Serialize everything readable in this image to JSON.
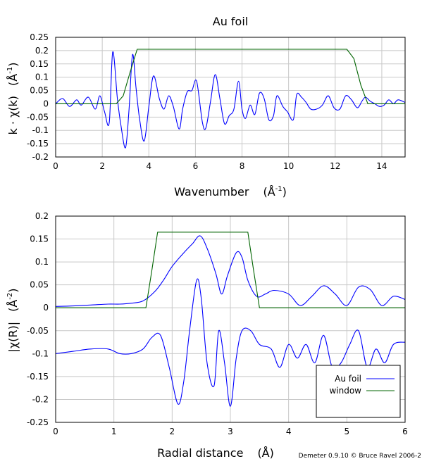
{
  "figure_title": "Au foil",
  "credit": "Demeter 0.9.10 © Bruce Ravel 2006-2",
  "colors": {
    "data": "#0000ff",
    "window": "#006400",
    "grid": "#c8c8c8"
  },
  "chart_data": [
    {
      "type": "line",
      "xlabel_text": "Wavenumber",
      "xlabel_unit": "(Å",
      "xlabel_sup": "-1",
      "ylabel_text": "k · χ(k)",
      "ylabel_unit": "(Å",
      "ylabel_sup": "-1",
      "xlim": [
        0,
        15
      ],
      "ylim": [
        -0.2,
        0.25
      ],
      "xticks": [
        0,
        2,
        4,
        6,
        8,
        10,
        12,
        14
      ],
      "yticks": [
        -0.2,
        -0.15,
        -0.1,
        -0.05,
        0,
        0.05,
        0.1,
        0.15,
        0.2,
        0.25
      ],
      "xtick_labels": [
        "0",
        "2",
        "4",
        "6",
        "8",
        "10",
        "12",
        "14"
      ],
      "ytick_labels": [
        "-0.2",
        "-0.15",
        "-0.1",
        "-0.05",
        "0",
        "0.05",
        "0.1",
        "0.15",
        "0.2",
        "0.25"
      ],
      "grid": true,
      "series": [
        {
          "role": "data",
          "x": [
            0,
            0.3,
            0.6,
            0.9,
            1.1,
            1.4,
            1.7,
            1.9,
            2.1,
            2.3,
            2.45,
            2.65,
            2.8,
            3.0,
            3.15,
            3.3,
            3.45,
            3.6,
            3.8,
            4.0,
            4.2,
            4.45,
            4.65,
            4.85,
            5.05,
            5.3,
            5.45,
            5.65,
            5.85,
            6.05,
            6.3,
            6.45,
            6.65,
            6.85,
            7.05,
            7.25,
            7.45,
            7.65,
            7.85,
            8.0,
            8.15,
            8.35,
            8.55,
            8.75,
            8.95,
            9.15,
            9.35,
            9.5,
            9.75,
            9.95,
            10.2,
            10.35,
            10.55,
            10.75,
            10.95,
            11.2,
            11.45,
            11.7,
            11.95,
            12.2,
            12.45,
            12.7,
            12.95,
            13.15,
            13.3,
            13.5,
            13.7,
            13.9,
            14.1,
            14.3,
            14.5,
            14.7,
            15.0
          ],
          "y": [
            0,
            0.02,
            -0.01,
            0.015,
            -0.005,
            0.025,
            -0.02,
            0.03,
            -0.03,
            -0.07,
            0.195,
            0.02,
            -0.08,
            -0.165,
            -0.02,
            0.185,
            0.06,
            -0.055,
            -0.14,
            -0.01,
            0.105,
            0.02,
            -0.02,
            0.03,
            -0.01,
            -0.095,
            -0.02,
            0.045,
            0.05,
            0.085,
            -0.07,
            -0.09,
            0.01,
            0.11,
            0.02,
            -0.075,
            -0.045,
            -0.02,
            0.085,
            -0.02,
            -0.055,
            -0.005,
            -0.04,
            0.04,
            0.02,
            -0.06,
            -0.045,
            0.03,
            -0.01,
            -0.03,
            -0.06,
            0.035,
            0.025,
            0.005,
            -0.02,
            -0.02,
            -0.005,
            0.03,
            -0.015,
            -0.02,
            0.03,
            0.015,
            -0.015,
            0.01,
            0.025,
            0.01,
            0,
            -0.01,
            -0.005,
            0.015,
            0,
            0.015,
            0.005
          ]
        },
        {
          "role": "window",
          "x": [
            0,
            2.6,
            2.9,
            3.2,
            3.5,
            12.5,
            12.8,
            13.1,
            13.4,
            15
          ],
          "y": [
            0,
            0,
            0.03,
            0.12,
            0.205,
            0.205,
            0.17,
            0.07,
            0,
            0
          ]
        }
      ]
    },
    {
      "type": "line",
      "xlabel_text": "Radial distance",
      "xlabel_unit": "(Å)",
      "ylabel_text": "|χ(R)|",
      "ylabel_unit": "(Å",
      "ylabel_sup": "-2",
      "xlim": [
        0,
        6
      ],
      "ylim": [
        -0.25,
        0.2
      ],
      "xticks": [
        0,
        1,
        2,
        3,
        4,
        5,
        6
      ],
      "yticks": [
        -0.25,
        -0.2,
        -0.15,
        -0.1,
        -0.05,
        0,
        0.05,
        0.1,
        0.15,
        0.2
      ],
      "xtick_labels": [
        "0",
        "1",
        "2",
        "3",
        "4",
        "5",
        "6"
      ],
      "ytick_labels": [
        "-0.25",
        "-0.2",
        "-0.15",
        "-0.1",
        "-0.05",
        "0",
        "0.05",
        "0.1",
        "0.15",
        "0.2"
      ],
      "grid": true,
      "legend": {
        "position": "bottom-right",
        "entries": [
          "Au foil",
          "window"
        ]
      },
      "series": [
        {
          "role": "data",
          "name": "Au foil",
          "x": [
            0,
            0.3,
            0.6,
            0.9,
            1.1,
            1.3,
            1.5,
            1.7,
            1.85,
            2.0,
            2.2,
            2.35,
            2.48,
            2.6,
            2.75,
            2.85,
            2.95,
            3.1,
            3.2,
            3.3,
            3.45,
            3.6,
            3.75,
            4.0,
            4.2,
            4.4,
            4.6,
            4.8,
            5.0,
            5.2,
            5.4,
            5.6,
            5.8,
            6.0
          ],
          "y": [
            0.003,
            0.004,
            0.006,
            0.008,
            0.008,
            0.01,
            0.015,
            0.035,
            0.06,
            0.09,
            0.12,
            0.14,
            0.157,
            0.13,
            0.075,
            0.03,
            0.07,
            0.12,
            0.11,
            0.06,
            0.025,
            0.03,
            0.038,
            0.03,
            0.005,
            0.025,
            0.048,
            0.03,
            0.005,
            0.045,
            0.04,
            0.005,
            0.025,
            0.018
          ]
        },
        {
          "role": "data_imag",
          "x": [
            0,
            0.3,
            0.6,
            0.9,
            1.1,
            1.3,
            1.5,
            1.65,
            1.8,
            1.95,
            2.1,
            2.2,
            2.3,
            2.42,
            2.5,
            2.6,
            2.72,
            2.8,
            2.9,
            3.0,
            3.1,
            3.2,
            3.35,
            3.5,
            3.7,
            3.85,
            4.0,
            4.15,
            4.3,
            4.45,
            4.6,
            4.75,
            4.9,
            5.05,
            5.2,
            5.35,
            5.5,
            5.65,
            5.8,
            6.0
          ],
          "y": [
            -0.1,
            -0.095,
            -0.09,
            -0.09,
            -0.1,
            -0.1,
            -0.09,
            -0.065,
            -0.06,
            -0.13,
            -0.21,
            -0.16,
            -0.05,
            0.06,
            0.02,
            -0.12,
            -0.17,
            -0.05,
            -0.12,
            -0.215,
            -0.11,
            -0.05,
            -0.05,
            -0.08,
            -0.09,
            -0.13,
            -0.08,
            -0.11,
            -0.08,
            -0.12,
            -0.06,
            -0.13,
            -0.12,
            -0.08,
            -0.05,
            -0.13,
            -0.09,
            -0.12,
            -0.08,
            -0.075
          ]
        },
        {
          "role": "window",
          "name": "window",
          "x": [
            0,
            1.55,
            1.65,
            1.75,
            3.3,
            3.4,
            3.5,
            6
          ],
          "y": [
            0,
            0,
            0.08,
            0.165,
            0.165,
            0.08,
            0,
            0
          ]
        }
      ]
    }
  ]
}
